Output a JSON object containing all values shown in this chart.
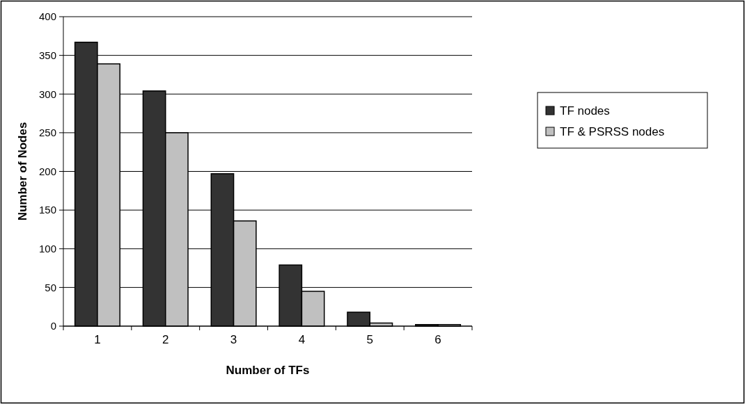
{
  "chart_data": {
    "type": "bar",
    "xlabel": "Number of TFs",
    "ylabel": "Number of Nodes",
    "categories": [
      "1",
      "2",
      "3",
      "4",
      "5",
      "6"
    ],
    "series": [
      {
        "name": "TF nodes",
        "color": "#333333",
        "values": [
          367,
          304,
          197,
          79,
          18,
          2
        ]
      },
      {
        "name": "TF & PSRSS nodes",
        "color": "#c0c0c0",
        "values": [
          339,
          250,
          136,
          45,
          4,
          2
        ]
      }
    ],
    "ylim": [
      0,
      400
    ],
    "yticks": [
      0,
      50,
      100,
      150,
      200,
      250,
      300,
      350,
      400
    ],
    "grid": "y",
    "legend": "right"
  }
}
